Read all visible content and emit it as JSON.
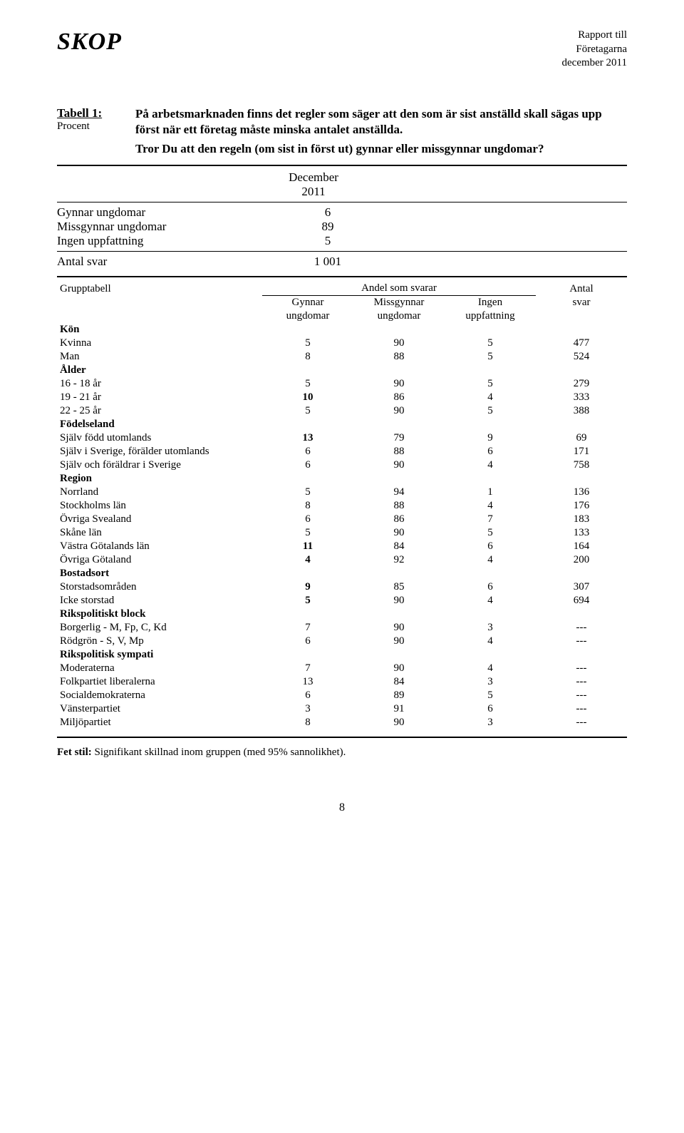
{
  "header": {
    "logo": "SKOP",
    "report_lines": [
      "Rapport till",
      "Företagarna",
      "december 2011"
    ]
  },
  "intro": {
    "tabell_label": "Tabell 1:",
    "procent": "Procent",
    "question_line1": "På arbetsmarknaden finns det regler som säger att den som är sist anställd skall sägas upp först när ett företag måste minska antalet anställda.",
    "question_line2": "Tror Du att den regeln (om sist in först ut) gynnar eller missgynnar ungdomar?"
  },
  "summary": {
    "period_top": "December",
    "period_bottom": "2011",
    "rows": [
      {
        "label": "Gynnar ungdomar",
        "value": "6"
      },
      {
        "label": "Missgynnar ungdomar",
        "value": "89"
      },
      {
        "label": "Ingen uppfattning",
        "value": "5"
      }
    ],
    "antal_label": "Antal svar",
    "antal_value": "1 001"
  },
  "table": {
    "headers": {
      "grupp": "Grupptabell",
      "andel": "Andel som svarar",
      "antal": "Antal",
      "c1_top": "Gynnar",
      "c1_bot": "ungdomar",
      "c2_top": "Missgynnar",
      "c2_bot": "ungdomar",
      "c3_top": "Ingen",
      "c3_bot": "uppfattning",
      "c4": "svar"
    },
    "groups": [
      {
        "title": "Kön",
        "rows": [
          {
            "label": "Kvinna",
            "v": [
              "5",
              "90",
              "5",
              "477"
            ],
            "bold": false
          },
          {
            "label": "Man",
            "v": [
              "8",
              "88",
              "5",
              "524"
            ],
            "bold": false
          }
        ]
      },
      {
        "title": "Ålder",
        "rows": [
          {
            "label": "16 - 18 år",
            "v": [
              "5",
              "90",
              "5",
              "279"
            ],
            "bold": false
          },
          {
            "label": "19 - 21 år",
            "v": [
              "10",
              "86",
              "4",
              "333"
            ],
            "bold": true
          },
          {
            "label": "22 - 25 år",
            "v": [
              "5",
              "90",
              "5",
              "388"
            ],
            "bold": false
          }
        ]
      },
      {
        "title": "Födelseland",
        "rows": [
          {
            "label": "Själv född utomlands",
            "v": [
              "13",
              "79",
              "9",
              "69"
            ],
            "bold": true
          },
          {
            "label": "Själv i Sverige, förälder utomlands",
            "v": [
              "6",
              "88",
              "6",
              "171"
            ],
            "bold": false
          },
          {
            "label": "Själv och föräldrar i Sverige",
            "v": [
              "6",
              "90",
              "4",
              "758"
            ],
            "bold": false
          }
        ]
      },
      {
        "title": "Region",
        "rows": [
          {
            "label": "Norrland",
            "v": [
              "5",
              "94",
              "1",
              "136"
            ],
            "bold": false
          },
          {
            "label": "Stockholms län",
            "v": [
              "8",
              "88",
              "4",
              "176"
            ],
            "bold": false
          },
          {
            "label": "Övriga Svealand",
            "v": [
              "6",
              "86",
              "7",
              "183"
            ],
            "bold": false
          },
          {
            "label": "Skåne län",
            "v": [
              "5",
              "90",
              "5",
              "133"
            ],
            "bold": false
          },
          {
            "label": "Västra Götalands län",
            "v": [
              "11",
              "84",
              "6",
              "164"
            ],
            "bold": true
          },
          {
            "label": "Övriga Götaland",
            "v": [
              "4",
              "92",
              "4",
              "200"
            ],
            "bold": true
          }
        ]
      },
      {
        "title": "Bostadsort",
        "rows": [
          {
            "label": "Storstadsområden",
            "v": [
              "9",
              "85",
              "6",
              "307"
            ],
            "bold": true
          },
          {
            "label": "Icke storstad",
            "v": [
              "5",
              "90",
              "4",
              "694"
            ],
            "bold": true
          }
        ]
      },
      {
        "title": "Rikspolitiskt block",
        "rows": [
          {
            "label": "Borgerlig - M, Fp, C, Kd",
            "v": [
              "7",
              "90",
              "3",
              "---"
            ],
            "bold": false
          },
          {
            "label": "Rödgrön - S, V, Mp",
            "v": [
              "6",
              "90",
              "4",
              "---"
            ],
            "bold": false
          }
        ]
      },
      {
        "title": "Rikspolitisk sympati",
        "rows": [
          {
            "label": "Moderaterna",
            "v": [
              "7",
              "90",
              "4",
              "---"
            ],
            "bold": false
          },
          {
            "label": "Folkpartiet liberalerna",
            "v": [
              "13",
              "84",
              "3",
              "---"
            ],
            "bold": false
          },
          {
            "label": "Socialdemokraterna",
            "v": [
              "6",
              "89",
              "5",
              "---"
            ],
            "bold": false
          },
          {
            "label": "Vänsterpartiet",
            "v": [
              "3",
              "91",
              "6",
              "---"
            ],
            "bold": false
          },
          {
            "label": "Miljöpartiet",
            "v": [
              "8",
              "90",
              "3",
              "---"
            ],
            "bold": false
          }
        ]
      }
    ]
  },
  "footnote": "Fet stil: Signifikant skillnad inom gruppen (med 95% sannolikhet).",
  "pagenum": "8"
}
